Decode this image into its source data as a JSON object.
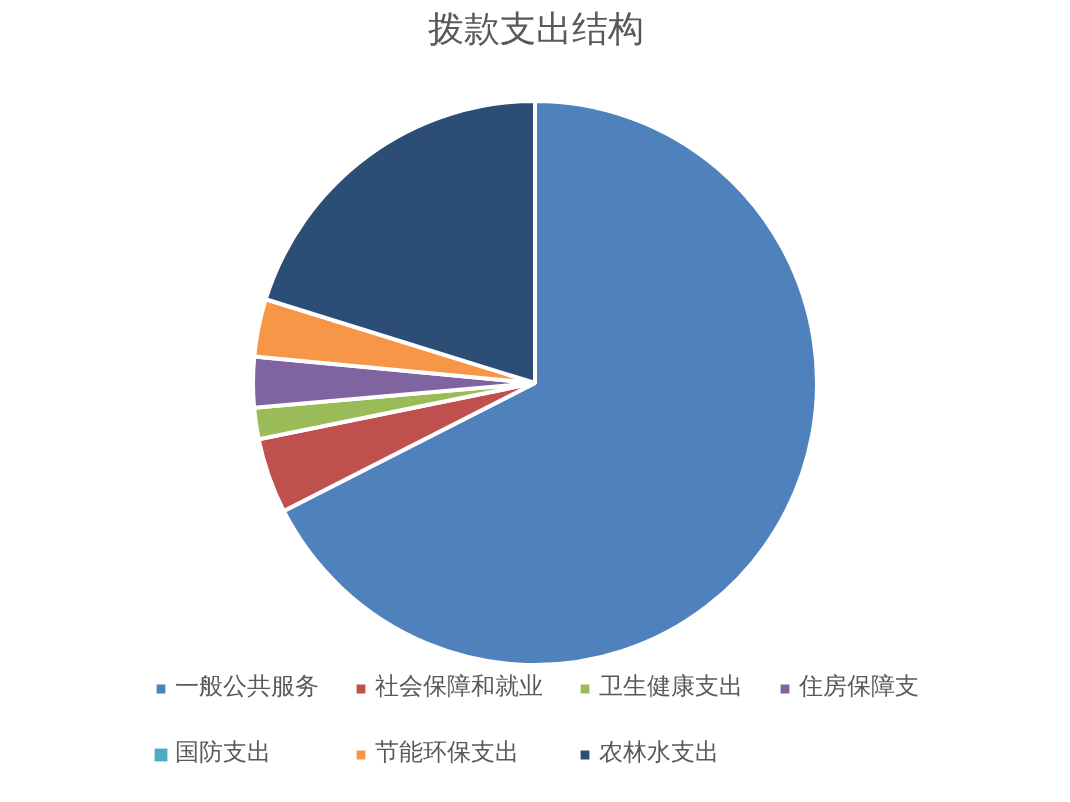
{
  "chart_data": {
    "type": "pie",
    "title": "拨款支出结构",
    "categories": [
      "一般公共服务",
      "社会保障和就业",
      "卫生健康支出",
      "住房保障支",
      "国防支出",
      "节能环保支出",
      "农林水支出"
    ],
    "values": [
      67.5,
      4.3,
      1.8,
      2.9,
      0,
      3.3,
      20.2
    ],
    "colors": [
      "#4f81bd",
      "#c0504d",
      "#9bbb59",
      "#8064a2",
      "#4bacc6",
      "#f79646",
      "#2c4d75"
    ],
    "legend": "bottom"
  }
}
